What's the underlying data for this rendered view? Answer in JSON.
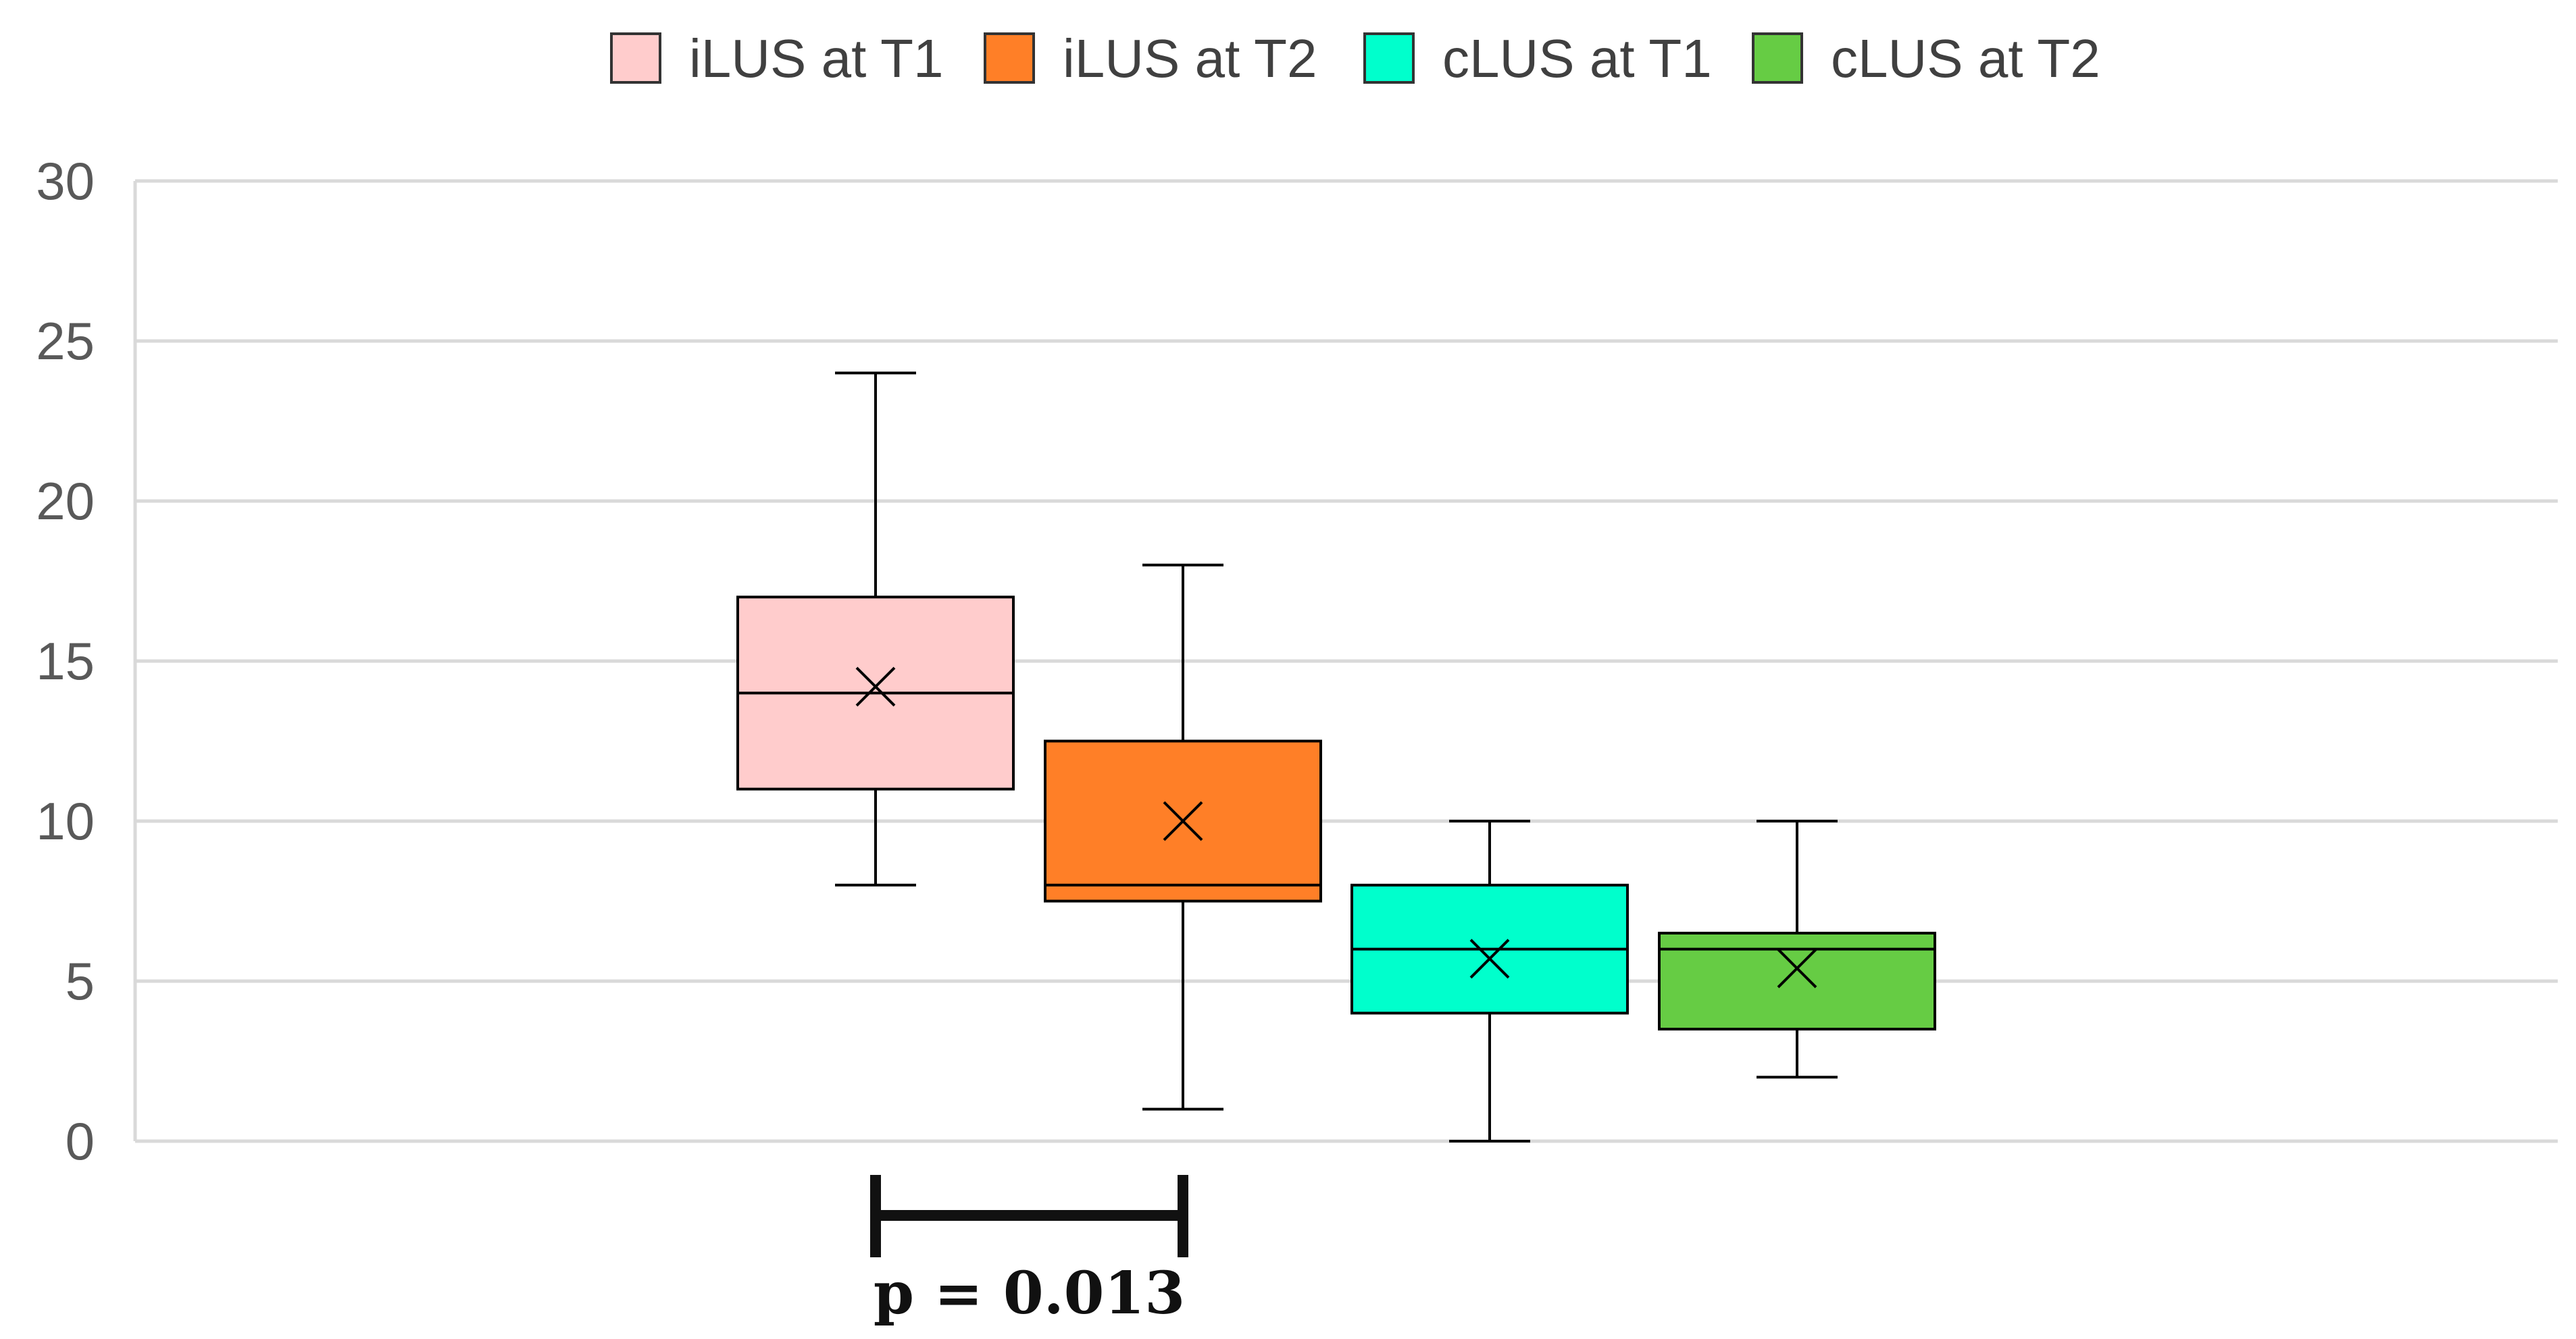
{
  "chart_data": {
    "type": "boxplot",
    "title": "",
    "xlabel": "",
    "ylabel": "",
    "ylim": [
      0,
      30
    ],
    "yticks": [
      "0",
      "5",
      "10",
      "15",
      "20",
      "25",
      "30"
    ],
    "grid": true,
    "legend_position": "top-center",
    "series": [
      {
        "name": "iLUS at T1",
        "color": "#FFCCCC",
        "min": 8,
        "q1": 11,
        "median": 14,
        "q3": 17,
        "max": 24,
        "mean": 14.2
      },
      {
        "name": "iLUS at T2",
        "color": "#FF7F27",
        "min": 1,
        "q1": 7.5,
        "median": 8,
        "q3": 12.5,
        "max": 18,
        "mean": 10
      },
      {
        "name": "cLUS at T1",
        "color": "#00FFCC",
        "min": 0,
        "q1": 4,
        "median": 6,
        "q3": 8,
        "max": 10,
        "mean": 5.7
      },
      {
        "name": "cLUS at T2",
        "color": "#66CC44",
        "min": 2,
        "q1": 3.5,
        "median": 6,
        "q3": 6.5,
        "max": 10,
        "mean": 5.4
      }
    ],
    "annotation": {
      "label": "p = 0.013",
      "from_series": "iLUS at T1",
      "to_series": "iLUS at T2"
    }
  }
}
